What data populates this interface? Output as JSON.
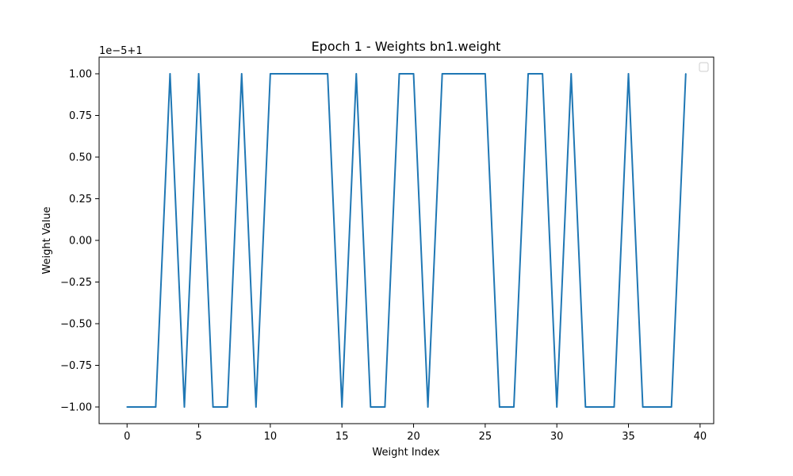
{
  "chart_data": {
    "type": "line",
    "title": "Epoch 1 - Weights bn1.weight",
    "xlabel": "Weight Index",
    "ylabel": "Weight Value",
    "y_offset_label": "1e−5+1",
    "xlim": [
      -1.95,
      40.95
    ],
    "ylim": [
      -1.1,
      1.1
    ],
    "x_ticks": [
      0,
      5,
      10,
      15,
      20,
      25,
      30,
      35,
      40
    ],
    "x_tick_labels": [
      "0",
      "5",
      "10",
      "15",
      "20",
      "25",
      "30",
      "35",
      "40"
    ],
    "y_ticks": [
      -1.0,
      -0.75,
      -0.5,
      -0.25,
      0.0,
      0.25,
      0.5,
      0.75,
      1.0
    ],
    "y_tick_labels": [
      "−1.00",
      "−0.75",
      "−0.50",
      "−0.25",
      "0.00",
      "0.25",
      "0.50",
      "0.75",
      "1.00"
    ],
    "grid": false,
    "legend": "top-right (empty)",
    "series": [
      {
        "color": "#1f77b4",
        "x": [
          0,
          1,
          2,
          3,
          4,
          5,
          6,
          7,
          8,
          9,
          10,
          11,
          12,
          13,
          14,
          15,
          16,
          17,
          18,
          19,
          20,
          21,
          22,
          23,
          24,
          25,
          26,
          27,
          28,
          29,
          30,
          31,
          32,
          33,
          34,
          35,
          36,
          37,
          38,
          39
        ],
        "y": [
          -1,
          -1,
          -1,
          1,
          -1,
          1,
          -1,
          -1,
          1,
          -1,
          1,
          1,
          1,
          1,
          1,
          -1,
          1,
          -1,
          -1,
          1,
          1,
          -1,
          1,
          1,
          1,
          1,
          -1,
          -1,
          1,
          1,
          -1,
          1,
          -1,
          -1,
          -1,
          1,
          -1,
          -1,
          -1,
          1
        ]
      }
    ]
  }
}
